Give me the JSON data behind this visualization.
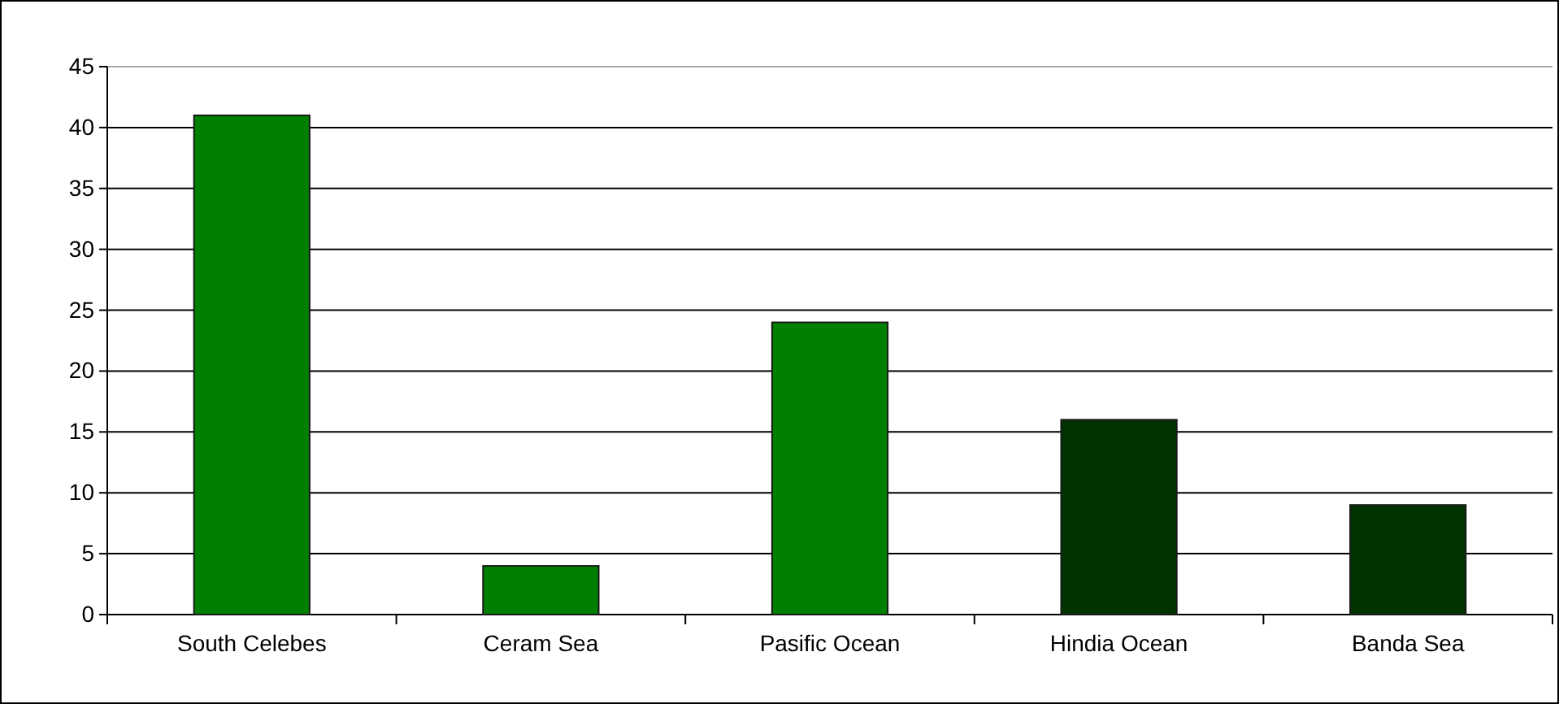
{
  "chart_data": {
    "type": "bar",
    "categories": [
      "South Celebes",
      "Ceram Sea",
      "Pasific Ocean",
      "Hindia Ocean",
      "Banda Sea"
    ],
    "values": [
      41,
      4,
      24,
      16,
      9
    ],
    "colors": [
      "#008000",
      "#008000",
      "#008000",
      "#003300",
      "#003300"
    ],
    "ylim": [
      0,
      45
    ],
    "yticks": [
      0,
      5,
      10,
      15,
      20,
      25,
      30,
      35,
      40,
      45
    ],
    "grid": "y"
  }
}
